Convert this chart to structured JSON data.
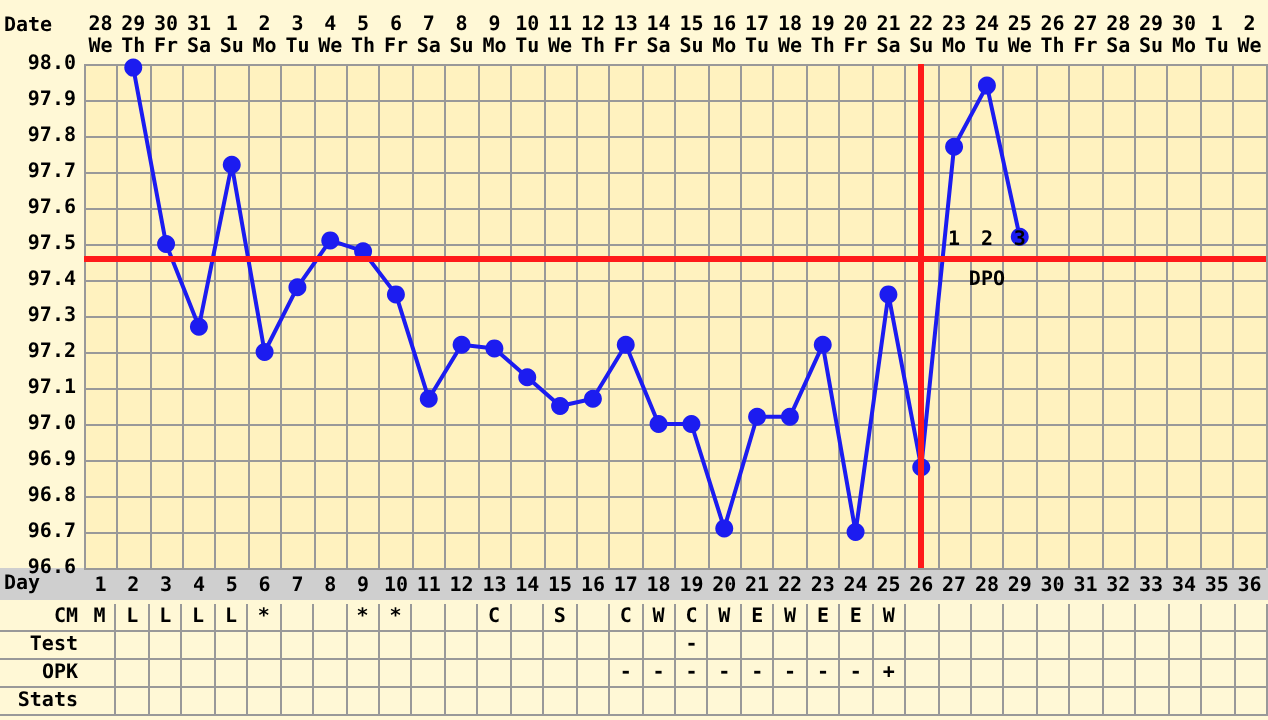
{
  "chart_data": [
    {
      "type": "line",
      "xlabel": "Date",
      "x2label": "Day",
      "categories": [
        "28\nWe",
        "29\nTh",
        "30\nFr",
        "31\nSa",
        "1\nSu",
        "2\nMo",
        "3\nTu",
        "4\nWe",
        "5\nTh",
        "6\nFr",
        "7\nSa",
        "8\nSu",
        "9\nMo",
        "10\nTu",
        "11\nWe",
        "12\nTh",
        "13\nFr",
        "14\nSa",
        "15\nSu",
        "16\nMo",
        "17\nTu",
        "18\nWe",
        "19\nTh",
        "20\nFr",
        "21\nSa",
        "22\nSu",
        "23\nMo",
        "24\nTu",
        "25\nWe",
        "26\nTh",
        "27\nFr",
        "28\nSa",
        "29\nSu",
        "30\nMo",
        "1\nTu",
        "2\nWe"
      ],
      "series": [
        {
          "color": "#1c1cf0",
          "values": [
            null,
            97.99,
            97.5,
            97.27,
            97.72,
            97.2,
            97.38,
            97.51,
            97.48,
            97.36,
            97.07,
            97.22,
            97.21,
            97.13,
            97.05,
            97.07,
            97.22,
            97.0,
            97.0,
            96.71,
            97.02,
            97.02,
            97.22,
            96.7,
            97.36,
            96.88,
            97.77,
            97.94,
            97.52,
            null,
            null,
            null,
            null,
            null,
            null,
            null
          ]
        }
      ],
      "ylim": [
        96.6,
        98.0
      ],
      "yticks": [
        96.6,
        96.7,
        96.8,
        96.9,
        {
          "value": 97.0,
          "label": "97.0"
        },
        97.1,
        97.2,
        97.3,
        97.4,
        97.5,
        97.6,
        97.7,
        97.8,
        97.9,
        {
          "value": 98.0,
          "label": "98.0"
        }
      ],
      "x2lim": [
        0.5,
        36.5
      ],
      "x2ticks": [
        1,
        2,
        3,
        4,
        5,
        6,
        7,
        8,
        9,
        10,
        11,
        12,
        13,
        14,
        15,
        16,
        17,
        18,
        19,
        20,
        21,
        22,
        23,
        24,
        25,
        26,
        27,
        28,
        29,
        30,
        31,
        32,
        33,
        34,
        35,
        36
      ],
      "grid": true,
      "marker": "circle",
      "line_style": "solid",
      "ref_lines": [
        {
          "axis": "y",
          "value": 97.46,
          "color": "#ff1a1a"
        },
        {
          "axis": "x",
          "value": "22\nSu",
          "color": "#ff1a1a"
        }
      ],
      "annotations": [
        "1",
        "2",
        "3",
        "DPO"
      ]
    },
    {
      "type": "other",
      "y_categories": [
        "CM",
        "Test",
        "OPK",
        "Stats"
      ],
      "cell_labels": [
        [
          "M",
          "L",
          "L",
          "L",
          "L",
          "*",
          null,
          null,
          "*",
          "*",
          null,
          null,
          "C",
          null,
          "S",
          null,
          "C",
          "W",
          "C",
          "W",
          "E",
          "W",
          "E",
          "E",
          "W",
          null,
          null,
          null,
          null,
          null,
          null,
          null,
          null,
          null,
          null,
          null
        ],
        [
          null,
          null,
          null,
          null,
          null,
          null,
          null,
          null,
          null,
          null,
          null,
          null,
          null,
          null,
          null,
          null,
          null,
          null,
          "-",
          null,
          null,
          null,
          null,
          null,
          null,
          null,
          null,
          null,
          null,
          null,
          null,
          null,
          null,
          null,
          null,
          null
        ],
        [
          null,
          null,
          null,
          null,
          null,
          null,
          null,
          null,
          null,
          null,
          null,
          null,
          null,
          null,
          null,
          null,
          "-",
          "-",
          "-",
          "-",
          "-",
          "-",
          "-",
          "-",
          "+",
          null,
          null,
          null,
          null,
          null,
          null,
          null,
          null,
          null,
          null,
          null
        ],
        [
          null,
          null,
          null,
          null,
          null,
          null,
          null,
          null,
          null,
          null,
          null,
          null,
          null,
          null,
          null,
          null,
          null,
          null,
          null,
          null,
          null,
          null,
          null,
          null,
          null,
          null,
          null,
          null,
          null,
          null,
          null,
          null,
          null,
          null,
          null,
          null
        ]
      ]
    }
  ]
}
